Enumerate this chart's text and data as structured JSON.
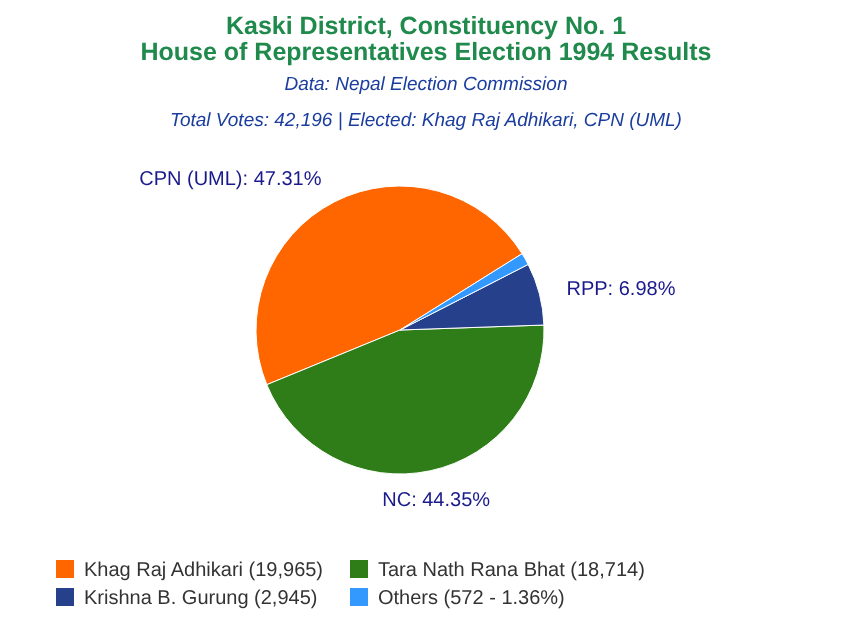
{
  "chart_data": {
    "type": "pie",
    "title": "Kaski District, Constituency No. 1\nHouse of Representatives Election 1994 Results",
    "subtitle": "Data: Nepal Election Commission",
    "annotations": [
      "Total Votes: 42,196 | Elected: Khag Raj Adhikari, CPN (UML)"
    ],
    "categories": [
      "Khag Raj Adhikari (19,965)",
      "Tara Nath Rana Bhat (18,714)",
      "Krishna B. Gurung (2,945)",
      "Others (572 - 1.36%)"
    ],
    "values": [
      47.31,
      44.35,
      6.98,
      1.36
    ],
    "colors": [
      "#ff6600",
      "#2e7d18",
      "#27408b",
      "#3399ff"
    ],
    "value_labels": [
      "CPN (UML): 47.31%",
      "NC: 44.35%",
      "RPP: 6.98%",
      null
    ],
    "legend": "bottom"
  }
}
